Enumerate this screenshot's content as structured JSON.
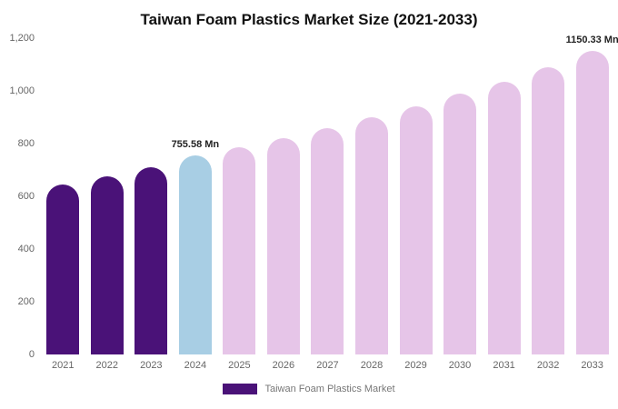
{
  "chart_data": {
    "type": "bar",
    "title": "Taiwan Foam Plastics Market Size (2021-2033)",
    "categories": [
      "2021",
      "2022",
      "2023",
      "2024",
      "2025",
      "2026",
      "2027",
      "2028",
      "2029",
      "2030",
      "2031",
      "2032",
      "2033"
    ],
    "values": [
      645,
      675,
      710,
      755.58,
      785,
      820,
      858,
      900,
      940,
      990,
      1035,
      1090,
      1150.33
    ],
    "unit": "Mn",
    "ylim": [
      0,
      1200
    ],
    "yticks": [
      {
        "value": 0,
        "label": "0"
      },
      {
        "value": 200,
        "label": "200"
      },
      {
        "value": 400,
        "label": "400"
      },
      {
        "value": 600,
        "label": "600"
      },
      {
        "value": 800,
        "label": "800"
      },
      {
        "value": 1000,
        "label": "1,000"
      },
      {
        "value": 1200,
        "label": "1,200"
      }
    ],
    "bar_colors": [
      "#4a1278",
      "#4a1278",
      "#4a1278",
      "#a8cee4",
      "#e6c5e8",
      "#e6c5e8",
      "#e6c5e8",
      "#e6c5e8",
      "#e6c5e8",
      "#e6c5e8",
      "#e6c5e8",
      "#e6c5e8",
      "#e6c5e8"
    ],
    "point_labels": [
      {
        "index": 3,
        "text": "755.58 Mn"
      },
      {
        "index": 12,
        "text": "1150.33 Mn"
      }
    ],
    "grid": false,
    "legend": "Taiwan Foam Plastics Market",
    "legend_color": "#4a1278",
    "legend_position": "bottom"
  }
}
